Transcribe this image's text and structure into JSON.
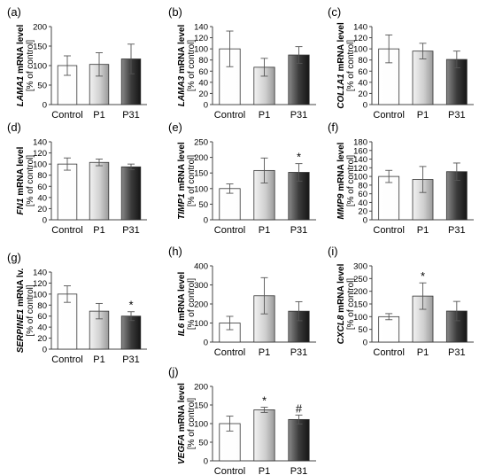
{
  "bar_fills": [
    "#fdfdfd",
    "#cfcfcf",
    "#3c3c3c"
  ],
  "bar_stroke": "#333333",
  "chart_data": [
    {
      "type": "bar",
      "panel": "(a)",
      "gene": "LAMA1",
      "ylabel_top": "mRNA level",
      "ylabel_bottom": "[% of control]",
      "categories": [
        "Control",
        "P1",
        "P31"
      ],
      "values": [
        100,
        103,
        117
      ],
      "errors": [
        25,
        30,
        38
      ],
      "marks": [
        "",
        "",
        ""
      ],
      "ylim": [
        0,
        200
      ],
      "yticks": [
        0,
        50,
        100,
        150,
        200
      ]
    },
    {
      "type": "bar",
      "panel": "(b)",
      "gene": "LAMA3",
      "ylabel_top": "mRNA level",
      "ylabel_bottom": "[% of control]",
      "categories": [
        "Control",
        "P1",
        "P31"
      ],
      "values": [
        100,
        67,
        89
      ],
      "errors": [
        32,
        16,
        15
      ],
      "marks": [
        "",
        "",
        ""
      ],
      "ylim": [
        0,
        140
      ],
      "yticks": [
        0,
        20,
        40,
        60,
        80,
        100,
        120,
        140
      ]
    },
    {
      "type": "bar",
      "panel": "(c)",
      "gene": "COL1A1",
      "ylabel_top": "mRNA level",
      "ylabel_bottom": "[% of control]",
      "categories": [
        "Control",
        "P1",
        "P31"
      ],
      "values": [
        100,
        96,
        81
      ],
      "errors": [
        25,
        14,
        15
      ],
      "marks": [
        "",
        "",
        ""
      ],
      "ylim": [
        0,
        140
      ],
      "yticks": [
        0,
        20,
        40,
        60,
        80,
        100,
        120,
        140
      ]
    },
    {
      "type": "bar",
      "panel": "(d)",
      "gene": "FN1",
      "ylabel_top": "mRNA level",
      "ylabel_bottom": "[% of control]",
      "categories": [
        "Control",
        "P1",
        "P31"
      ],
      "values": [
        100,
        103,
        95
      ],
      "errors": [
        11,
        6,
        5
      ],
      "marks": [
        "",
        "",
        ""
      ],
      "ylim": [
        0,
        140
      ],
      "yticks": [
        0,
        20,
        40,
        60,
        80,
        100,
        120,
        140
      ]
    },
    {
      "type": "bar",
      "panel": "(e)",
      "gene": "TIMP1",
      "ylabel_top": "mRNA level",
      "ylabel_bottom": "[% of control]",
      "categories": [
        "Control",
        "P1",
        "P31"
      ],
      "values": [
        100,
        158,
        152
      ],
      "errors": [
        15,
        40,
        28
      ],
      "marks": [
        "",
        "",
        "*"
      ],
      "ylim": [
        0,
        250
      ],
      "yticks": [
        0,
        50,
        100,
        150,
        200,
        250
      ]
    },
    {
      "type": "bar",
      "panel": "(f)",
      "gene": "MMP9",
      "ylabel_top": "mRNA level",
      "ylabel_bottom": "[% of control]",
      "categories": [
        "Control",
        "P1",
        "P31"
      ],
      "values": [
        100,
        93,
        111
      ],
      "errors": [
        14,
        30,
        20
      ],
      "marks": [
        "",
        "",
        ""
      ],
      "ylim": [
        0,
        180
      ],
      "yticks": [
        0,
        20,
        40,
        60,
        80,
        100,
        120,
        140,
        160,
        180
      ]
    },
    {
      "type": "bar",
      "panel": "(g)",
      "gene": "SERPINE1",
      "ylabel_top": "mRNA lv.",
      "ylabel_bottom": "[% of control]",
      "categories": [
        "Control",
        "P1",
        "P31"
      ],
      "values": [
        100,
        69,
        60
      ],
      "errors": [
        15,
        14,
        8
      ],
      "marks": [
        "",
        "",
        "*"
      ],
      "ylim": [
        0,
        140
      ],
      "yticks": [
        0,
        20,
        40,
        60,
        80,
        100,
        120,
        140
      ]
    },
    {
      "type": "bar",
      "panel": "(h)",
      "gene": "IL6",
      "ylabel_top": "mRNA level",
      "ylabel_bottom": "[% of control]",
      "categories": [
        "Control",
        "P1",
        "P31"
      ],
      "values": [
        100,
        243,
        162
      ],
      "errors": [
        35,
        95,
        50
      ],
      "marks": [
        "",
        "",
        ""
      ],
      "ylim": [
        0,
        400
      ],
      "yticks": [
        0,
        100,
        200,
        300,
        400
      ]
    },
    {
      "type": "bar",
      "panel": "(i)",
      "gene": "CXCL8",
      "ylabel_top": "mRNA level",
      "ylabel_bottom": "[% of control]",
      "categories": [
        "Control",
        "P1",
        "P31"
      ],
      "values": [
        100,
        181,
        122
      ],
      "errors": [
        12,
        52,
        38
      ],
      "marks": [
        "",
        "*",
        ""
      ],
      "ylim": [
        0,
        300
      ],
      "yticks": [
        0,
        50,
        100,
        150,
        200,
        250,
        300
      ]
    },
    {
      "type": "bar",
      "panel": "(j)",
      "gene": "VEGFA",
      "ylabel_top": "mRNA level",
      "ylabel_bottom": "[% of control]",
      "categories": [
        "Control",
        "P1",
        "P31"
      ],
      "values": [
        100,
        137,
        111
      ],
      "errors": [
        20,
        7,
        12
      ],
      "marks": [
        "",
        "*",
        "#"
      ],
      "ylim": [
        0,
        200
      ],
      "yticks": [
        0,
        50,
        100,
        150,
        200
      ]
    }
  ]
}
